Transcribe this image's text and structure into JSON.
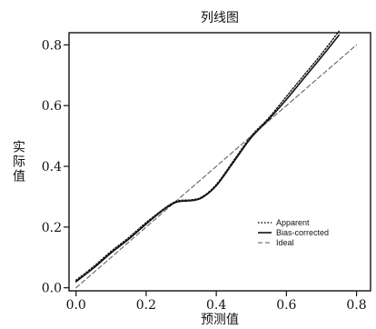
{
  "chart_data": {
    "type": "line",
    "title": "列线图",
    "xlabel": "预测值",
    "ylabel": "实际值",
    "xlim": [
      -0.02,
      0.84
    ],
    "ylim": [
      -0.01,
      0.84
    ],
    "x_ticks": [
      0.0,
      0.2,
      0.4,
      0.6,
      0.8
    ],
    "x_tick_labels": [
      "0.0",
      "0.2",
      "0.4",
      "0.6",
      "0.8"
    ],
    "y_ticks": [
      0.0,
      0.2,
      0.4,
      0.6,
      0.8
    ],
    "y_tick_labels": [
      "0.0",
      "0.2",
      "0.4",
      "0.6",
      "0.8"
    ],
    "legend_position": "bottom-right",
    "series": [
      {
        "name": "Apparent",
        "style": "dotted",
        "color": "#111111",
        "x": [
          0.0,
          0.05,
          0.1,
          0.15,
          0.2,
          0.25,
          0.28,
          0.3,
          0.33,
          0.36,
          0.4,
          0.45,
          0.5,
          0.55,
          0.6,
          0.65,
          0.7,
          0.75
        ],
        "y": [
          0.025,
          0.07,
          0.12,
          0.165,
          0.215,
          0.26,
          0.282,
          0.288,
          0.29,
          0.3,
          0.34,
          0.42,
          0.5,
          0.56,
          0.63,
          0.7,
          0.77,
          0.845
        ]
      },
      {
        "name": "Bias-corrected",
        "style": "solid",
        "color": "#111111",
        "x": [
          0.0,
          0.05,
          0.1,
          0.15,
          0.2,
          0.25,
          0.28,
          0.3,
          0.33,
          0.36,
          0.4,
          0.45,
          0.5,
          0.55,
          0.6,
          0.65,
          0.7,
          0.75
        ],
        "y": [
          0.02,
          0.065,
          0.115,
          0.16,
          0.21,
          0.257,
          0.279,
          0.285,
          0.287,
          0.297,
          0.336,
          0.415,
          0.495,
          0.555,
          0.62,
          0.69,
          0.76,
          0.832
        ]
      },
      {
        "name": "Ideal",
        "style": "dashed",
        "color": "#555555",
        "x": [
          0.0,
          0.8
        ],
        "y": [
          0.0,
          0.8
        ]
      }
    ]
  }
}
